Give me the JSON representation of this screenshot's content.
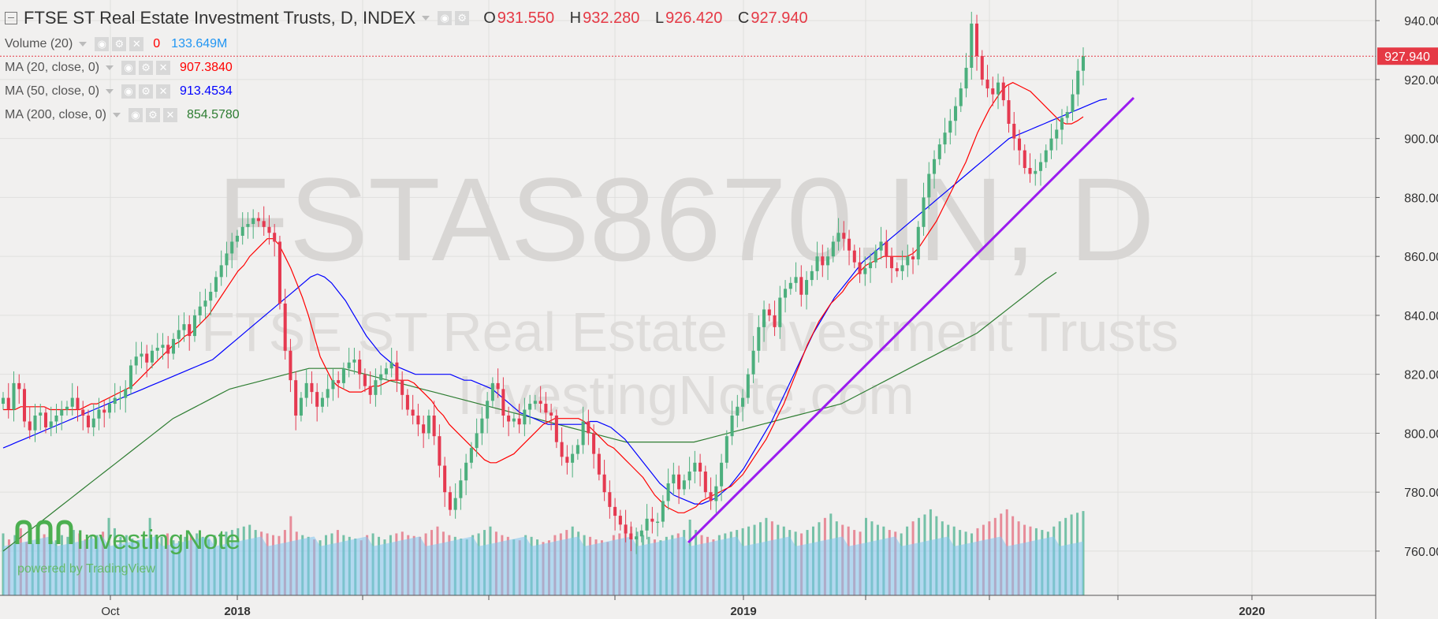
{
  "header": {
    "title": "FTSE ST Real Estate Investment Trusts, D, INDEX",
    "ohlc": [
      {
        "key": "O",
        "value": "931.550"
      },
      {
        "key": "H",
        "value": "932.280"
      },
      {
        "key": "L",
        "value": "926.420"
      },
      {
        "key": "C",
        "value": "927.940"
      }
    ]
  },
  "indicators": [
    {
      "label": "Volume (20)",
      "value": "0",
      "value2": "133.649M",
      "color": "#ff0000",
      "color2": "#2196f3"
    },
    {
      "label": "MA (20, close, 0)",
      "value": "907.3840",
      "color": "#ff0000"
    },
    {
      "label": "MA (50, close, 0)",
      "value": "913.4534",
      "color": "#0000ff"
    },
    {
      "label": "MA (200, close, 0)",
      "value": "854.5780",
      "color": "#2e7d32"
    }
  ],
  "watermark": {
    "symbol": "FSTAS8670.IN, D",
    "name": "FTSE ST Real Estate Investment Trusts",
    "site": "InvestingNote.com",
    "logo_text": "InvestingNote",
    "powered": "powered by TradingView"
  },
  "price_label": "927.940",
  "chart_data": {
    "type": "candlestick",
    "title": "FTSE ST Real Estate Investment Trusts, D, INDEX",
    "y_ticks": [
      "940.000",
      "920.000",
      "900.000",
      "880.000",
      "860.000",
      "840.000",
      "820.000",
      "800.000",
      "780.000",
      "760.000"
    ],
    "ylim": [
      745,
      947
    ],
    "x_ticks": [
      "Oct",
      "2018",
      "",
      "",
      "",
      "2019",
      "",
      "",
      "",
      "2020"
    ],
    "grid": true,
    "last_close": 927.94,
    "series_close": [
      812,
      808,
      817,
      815,
      804,
      801,
      806,
      807,
      802,
      804,
      806,
      808,
      809,
      812,
      808,
      806,
      802,
      805,
      808,
      807,
      810,
      812,
      812,
      815,
      823,
      826,
      827,
      824,
      828,
      829,
      830,
      827,
      832,
      835,
      837,
      833,
      840,
      843,
      845,
      848,
      853,
      857,
      861,
      865,
      867,
      870,
      871,
      873,
      872,
      870,
      868,
      865,
      844,
      828,
      818,
      806,
      812,
      817,
      814,
      809,
      812,
      815,
      818,
      817,
      822,
      824,
      825,
      820,
      816,
      813,
      818,
      820,
      822,
      824,
      818,
      813,
      808,
      806,
      803,
      800,
      806,
      799,
      789,
      780,
      774,
      778,
      784,
      790,
      795,
      800,
      805,
      811,
      817,
      815,
      806,
      804,
      805,
      803,
      808,
      810,
      811,
      810,
      807,
      806,
      797,
      792,
      790,
      793,
      796,
      804,
      800,
      793,
      786,
      780,
      775,
      772,
      769,
      766,
      764,
      765,
      767,
      771,
      770,
      770,
      777,
      783,
      786,
      781,
      784,
      787,
      790,
      787,
      780,
      777,
      782,
      790,
      799,
      806,
      809,
      812,
      820,
      828,
      836,
      842,
      840,
      836,
      846,
      849,
      851,
      853,
      847,
      852,
      855,
      860,
      857,
      860,
      865,
      868,
      866,
      862,
      858,
      854,
      856,
      858,
      862,
      865,
      860,
      856,
      855,
      857,
      860,
      859,
      870,
      880,
      888,
      893,
      898,
      902,
      906,
      911,
      917,
      924,
      939,
      928,
      920,
      917,
      915,
      919,
      913,
      905,
      900,
      896,
      890,
      888,
      889,
      892,
      896,
      900,
      903,
      907,
      909,
      915,
      923,
      927.94
    ],
    "ma20": [
      808,
      808,
      808,
      809,
      809,
      809,
      809,
      809,
      808,
      808,
      808,
      808,
      808,
      808,
      809,
      810,
      810,
      811,
      812,
      813,
      814,
      815,
      816,
      818,
      820,
      822,
      824,
      826,
      828,
      830,
      831,
      833,
      834,
      836,
      838,
      840,
      843,
      846,
      849,
      852,
      855,
      857,
      860,
      862,
      864,
      866,
      866,
      864,
      860,
      856,
      851,
      846,
      840,
      833,
      826,
      822,
      818,
      816,
      815,
      814,
      814,
      814,
      815,
      816,
      816,
      817,
      818,
      818,
      818,
      818,
      817,
      815,
      813,
      811,
      808,
      806,
      803,
      801,
      799,
      797,
      795,
      793,
      791,
      790,
      790,
      791,
      792,
      793,
      795,
      797,
      799,
      801,
      803,
      804,
      805,
      805,
      805,
      805,
      805,
      804,
      802,
      800,
      798,
      796,
      795,
      793,
      791,
      789,
      787,
      785,
      782,
      779,
      777,
      775,
      774,
      773,
      773,
      774,
      775,
      777,
      778,
      779,
      780,
      781,
      782,
      784,
      786,
      789,
      792,
      795,
      798,
      802,
      806,
      810,
      815,
      820,
      825,
      830,
      834,
      838,
      841,
      844,
      846,
      848,
      851,
      853,
      855,
      857,
      858,
      859,
      860,
      860,
      860,
      860,
      860,
      861,
      863,
      866,
      869,
      872,
      876,
      880,
      884,
      888,
      892,
      897,
      902,
      906,
      910,
      913,
      916,
      918,
      919,
      918,
      917,
      916,
      914,
      912,
      910,
      908,
      906,
      905,
      905,
      906,
      907.38
    ],
    "ma50": [
      795,
      796,
      797,
      798,
      799,
      800,
      801,
      802,
      803,
      804,
      805,
      806,
      807,
      808,
      809,
      810,
      811,
      812,
      813,
      814,
      815,
      816,
      817,
      818,
      819,
      820,
      821,
      822,
      823,
      824,
      825,
      827,
      829,
      831,
      833,
      835,
      837,
      839,
      841,
      843,
      845,
      847,
      849,
      851,
      853,
      854,
      853,
      851,
      848,
      845,
      841,
      837,
      833,
      830,
      827,
      825,
      823,
      822,
      821,
      820,
      820,
      820,
      820,
      820,
      820,
      819,
      818,
      818,
      817,
      816,
      815,
      813,
      811,
      809,
      807,
      806,
      805,
      804,
      803,
      803,
      803,
      803,
      803,
      803,
      804,
      804,
      803,
      802,
      800,
      798,
      795,
      792,
      789,
      786,
      783,
      781,
      779,
      778,
      777,
      776,
      776,
      777,
      778,
      780,
      782,
      785,
      788,
      792,
      796,
      800,
      804,
      809,
      814,
      819,
      824,
      829,
      834,
      838,
      842,
      846,
      849,
      852,
      855,
      858,
      860,
      862,
      864,
      866,
      868,
      870,
      872,
      874,
      876,
      878,
      880,
      882,
      884,
      886,
      888,
      890,
      892,
      894,
      896,
      898,
      900,
      901,
      902,
      903,
      904,
      905,
      906,
      907,
      908,
      909,
      910,
      911,
      912,
      913,
      913.45
    ],
    "ma200": [
      760,
      763,
      766,
      769,
      772,
      775,
      778,
      781,
      784,
      787,
      790,
      793,
      796,
      799,
      802,
      805,
      807,
      809,
      811,
      813,
      815,
      816,
      817,
      818,
      819,
      820,
      821,
      822,
      822,
      822,
      822,
      821,
      820,
      819,
      818,
      817,
      816,
      815,
      814,
      813,
      812,
      811,
      810,
      809,
      808,
      807,
      806,
      805,
      804,
      803,
      802,
      801,
      800,
      799,
      798,
      797,
      797,
      797,
      797,
      797,
      797,
      797,
      798,
      799,
      800,
      801,
      802,
      803,
      804,
      805,
      806,
      807,
      808,
      809,
      810,
      812,
      814,
      816,
      818,
      820,
      822,
      824,
      826,
      828,
      830,
      832,
      834,
      837,
      840,
      843,
      846,
      849,
      852,
      854.58
    ],
    "volume": [
      720,
      650,
      700,
      780,
      620,
      600,
      690,
      710,
      650,
      640,
      700,
      680,
      760,
      720,
      650,
      690,
      700,
      740,
      900,
      780,
      680,
      700,
      660,
      640,
      620,
      900,
      700,
      680,
      720,
      640,
      630,
      680,
      700,
      720,
      680,
      650,
      700,
      720,
      740,
      760,
      780,
      800,
      820,
      760,
      740,
      720,
      700,
      690,
      760,
      920,
      740,
      700,
      680,
      650,
      640,
      700,
      720,
      760,
      700,
      680,
      660,
      640,
      700,
      720,
      680,
      650,
      700,
      720,
      740,
      700,
      690,
      680,
      720,
      760,
      800,
      740,
      700,
      680,
      660,
      650,
      700,
      720,
      760,
      800,
      740,
      700,
      680,
      650,
      640,
      700,
      680,
      650,
      620,
      640,
      700,
      720,
      760,
      800,
      740,
      700,
      680,
      650,
      640,
      620,
      700,
      720,
      760,
      800,
      740,
      700,
      680,
      650,
      640,
      680,
      700,
      720,
      760,
      880,
      760,
      700,
      680,
      650,
      700,
      720,
      740,
      760,
      780,
      800,
      820,
      850,
      900,
      860,
      820,
      800,
      760,
      740,
      720,
      760,
      800,
      850,
      900,
      950,
      860,
      820,
      800,
      760,
      740,
      900,
      860,
      820,
      800,
      760,
      740,
      720,
      800,
      860,
      900,
      940,
      1000,
      920,
      860,
      820,
      800,
      760,
      740,
      720,
      780,
      820,
      860,
      900,
      950,
      1000,
      920,
      860,
      820,
      800,
      780,
      760,
      740,
      800,
      860,
      900,
      940,
      960,
      980
    ]
  }
}
